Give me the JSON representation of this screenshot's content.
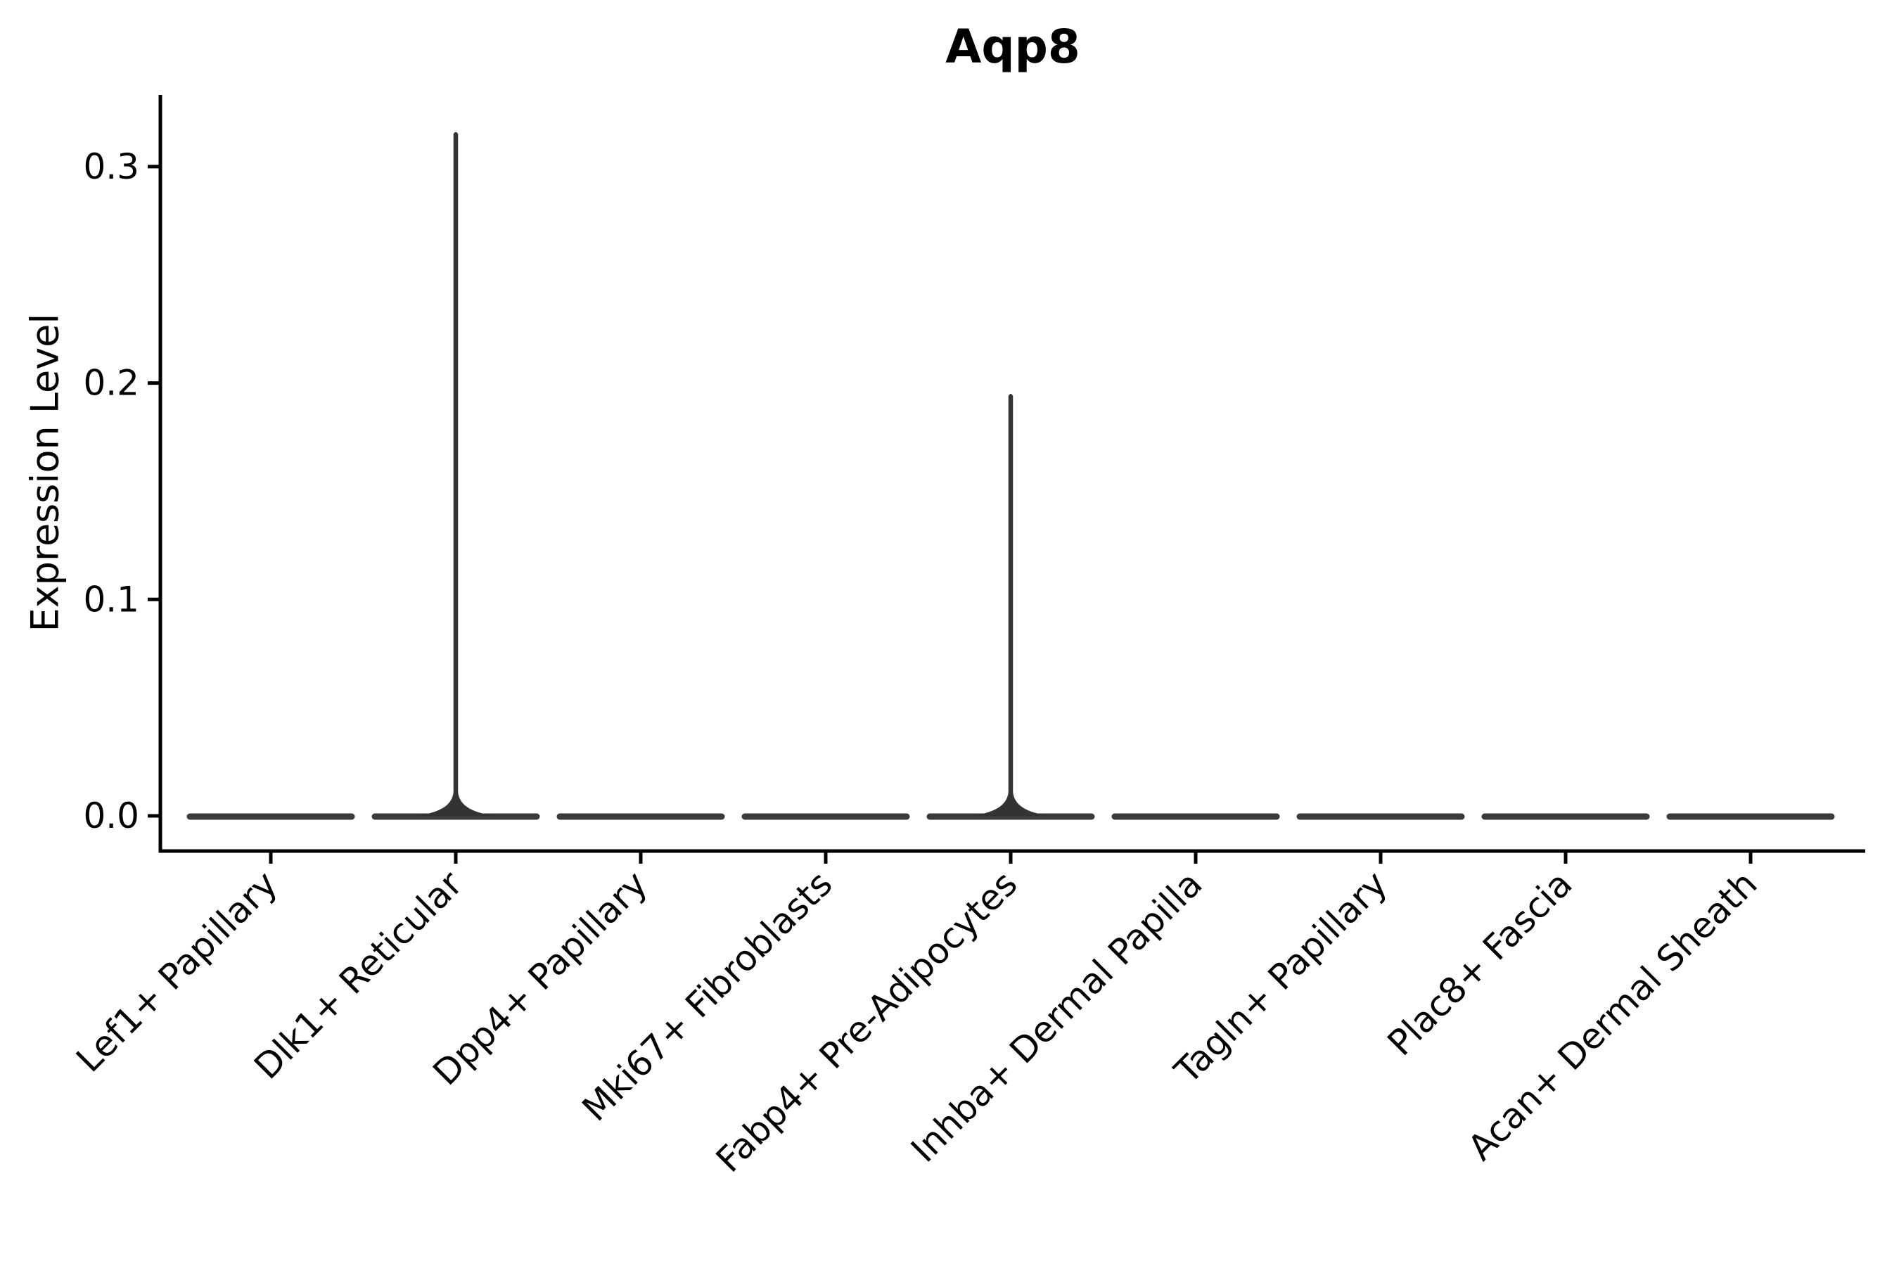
{
  "figure": {
    "title": "Aqp8",
    "ylabel": "Expression Level"
  },
  "chart_data": {
    "type": "violin",
    "title": "Aqp8",
    "xlabel": "",
    "ylabel": "Expression Level",
    "categories": [
      "Lef1+ Papillary",
      "Dlk1+ Reticular",
      "Dpp4+ Papillary",
      "Mki67+ Fibroblasts",
      "Fabp4+ Pre-Adipocytes",
      "Inhba+ Dermal Papilla",
      "Tagln+ Papillary",
      "Plac8+ Fascia",
      "Acan+ Dermal Sheath"
    ],
    "series": [
      {
        "name": "max_expression",
        "values": [
          0,
          0.316,
          0,
          0,
          0.195,
          0,
          0,
          0,
          0
        ]
      }
    ],
    "ytick_labels": [
      "0.0",
      "0.1",
      "0.2",
      "0.3"
    ],
    "yticks": [
      0.0,
      0.1,
      0.2,
      0.3
    ],
    "ylim": [
      -0.016,
      0.333
    ],
    "grid": false,
    "legend": null,
    "notes": "All violins are collapsed flat at 0 expression; Dlk1+ Reticular shows a thin spike to ~0.316 and Fabp4+ Pre-Adipocytes a thin spike to ~0.195.",
    "violin_color": "#3a3a3a",
    "spike_color": "#333333",
    "axis_color": "#000000",
    "text_color": "#000000",
    "background_color": "#ffffff"
  }
}
